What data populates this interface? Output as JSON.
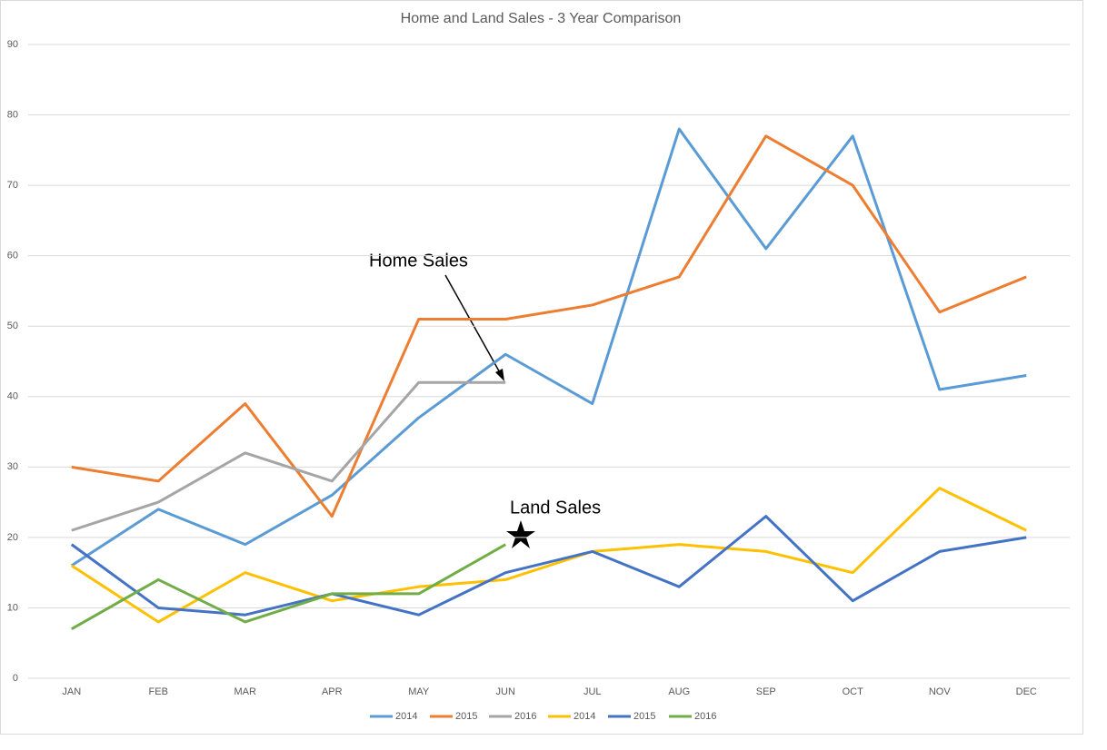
{
  "chart_data": {
    "type": "line",
    "title": "Home and Land Sales - 3 Year Comparison",
    "categories": [
      "JAN",
      "FEB",
      "MAR",
      "APR",
      "MAY",
      "JUN",
      "JUL",
      "AUG",
      "SEP",
      "OCT",
      "NOV",
      "DEC"
    ],
    "series": [
      {
        "name": "2014",
        "color": "#5b9bd5",
        "values": [
          16,
          24,
          19,
          26,
          37,
          46,
          39,
          78,
          61,
          77,
          41,
          43
        ]
      },
      {
        "name": "2015",
        "color": "#ed7d31",
        "values": [
          30,
          28,
          39,
          23,
          51,
          51,
          53,
          57,
          77,
          70,
          52,
          57
        ]
      },
      {
        "name": "2016",
        "color": "#a5a5a5",
        "values": [
          21,
          25,
          32,
          28,
          42,
          42,
          null,
          null,
          null,
          null,
          null,
          null
        ]
      },
      {
        "name": "2014",
        "color": "#ffc000",
        "values": [
          16,
          8,
          15,
          11,
          13,
          14,
          18,
          19,
          18,
          15,
          27,
          21
        ]
      },
      {
        "name": "2015",
        "color": "#4472c4",
        "values": [
          19,
          10,
          9,
          12,
          9,
          15,
          18,
          13,
          23,
          11,
          18,
          20
        ]
      },
      {
        "name": "2016",
        "color": "#70ad47",
        "values": [
          7,
          14,
          8,
          12,
          12,
          19,
          null,
          null,
          null,
          null,
          null,
          null
        ]
      }
    ],
    "ylim": [
      0,
      90
    ],
    "yticks": [
      0,
      10,
      20,
      30,
      40,
      50,
      60,
      70,
      80,
      90
    ],
    "grid": true,
    "legend": "bottom",
    "annotations": [
      "Home Sales",
      "Land Sales"
    ]
  }
}
